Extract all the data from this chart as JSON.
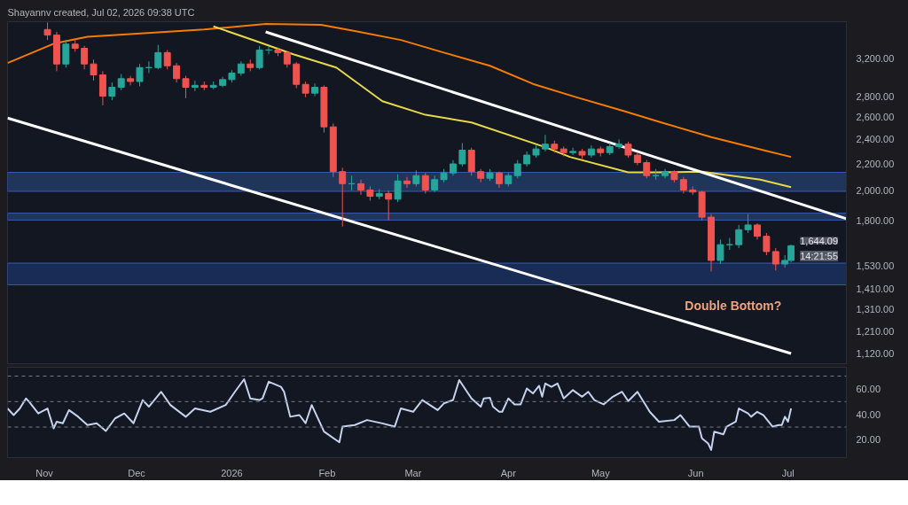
{
  "chart_data": [
    {
      "type": "candlestick",
      "title": "Shayannv created, Jul 02, 2026 09:38 UTC",
      "log": true,
      "x": [
        "2025-11-02",
        "2025-11-05",
        "2025-11-08",
        "2025-11-11",
        "2025-11-14",
        "2025-11-17",
        "2025-11-20",
        "2025-11-23",
        "2025-11-26",
        "2025-11-29",
        "2025-12-02",
        "2025-12-05",
        "2025-12-08",
        "2025-12-11",
        "2025-12-14",
        "2025-12-17",
        "2025-12-20",
        "2025-12-23",
        "2025-12-26",
        "2025-12-29",
        "2026-01-01",
        "2026-01-04",
        "2026-01-07",
        "2026-01-10",
        "2026-01-13",
        "2026-01-16",
        "2026-01-19",
        "2026-01-22",
        "2026-01-25",
        "2026-01-28",
        "2026-01-31",
        "2026-02-03",
        "2026-02-06",
        "2026-02-09",
        "2026-02-12",
        "2026-02-15",
        "2026-02-18",
        "2026-02-21",
        "2026-02-24",
        "2026-02-27",
        "2026-03-02",
        "2026-03-05",
        "2026-03-08",
        "2026-03-11",
        "2026-03-14",
        "2026-03-17",
        "2026-03-20",
        "2026-03-23",
        "2026-03-26",
        "2026-03-29",
        "2026-04-01",
        "2026-04-04",
        "2026-04-07",
        "2026-04-10",
        "2026-04-13",
        "2026-04-16",
        "2026-04-19",
        "2026-04-22",
        "2026-04-25",
        "2026-04-28",
        "2026-05-01",
        "2026-05-04",
        "2026-05-07",
        "2026-05-10",
        "2026-05-13",
        "2026-05-16",
        "2026-05-19",
        "2026-05-22",
        "2026-05-25",
        "2026-05-28",
        "2026-05-31",
        "2026-06-03",
        "2026-06-06",
        "2026-06-09",
        "2026-06-12",
        "2026-06-15",
        "2026-06-18",
        "2026-06-21",
        "2026-06-24",
        "2026-06-27",
        "2026-06-30",
        "2026-07-02"
      ],
      "ohlc": [
        [
          3550,
          3640,
          3420,
          3480
        ],
        [
          3480,
          3520,
          3060,
          3140
        ],
        [
          3140,
          3420,
          3100,
          3370
        ],
        [
          3370,
          3440,
          3280,
          3320
        ],
        [
          3320,
          3350,
          3080,
          3140
        ],
        [
          3140,
          3190,
          2960,
          3020
        ],
        [
          3020,
          3060,
          2710,
          2800
        ],
        [
          2800,
          2940,
          2760,
          2890
        ],
        [
          2890,
          3030,
          2860,
          2980
        ],
        [
          2980,
          3010,
          2910,
          2950
        ],
        [
          2950,
          3140,
          2900,
          3100
        ],
        [
          3100,
          3170,
          3040,
          3100
        ],
        [
          3100,
          3360,
          3080,
          3270
        ],
        [
          3270,
          3300,
          3080,
          3120
        ],
        [
          3120,
          3150,
          2940,
          2980
        ],
        [
          2980,
          3010,
          2780,
          2890
        ],
        [
          2890,
          2960,
          2850,
          2910
        ],
        [
          2910,
          2950,
          2860,
          2890
        ],
        [
          2890,
          2950,
          2870,
          2910
        ],
        [
          2910,
          3000,
          2890,
          2970
        ],
        [
          2970,
          3070,
          2940,
          3040
        ],
        [
          3040,
          3170,
          3010,
          3140
        ],
        [
          3140,
          3190,
          3060,
          3100
        ],
        [
          3100,
          3350,
          3080,
          3300
        ],
        [
          3300,
          3340,
          3250,
          3300
        ],
        [
          3300,
          3330,
          3230,
          3270
        ],
        [
          3270,
          3290,
          3100,
          3140
        ],
        [
          3140,
          3160,
          2880,
          2920
        ],
        [
          2920,
          2950,
          2790,
          2830
        ],
        [
          2830,
          2930,
          2800,
          2890
        ],
        [
          2890,
          2910,
          2460,
          2510
        ],
        [
          2510,
          2540,
          2100,
          2140
        ],
        [
          2140,
          2170,
          1760,
          2050
        ],
        [
          2050,
          2110,
          2000,
          2050
        ],
        [
          2050,
          2080,
          1970,
          2005
        ],
        [
          2005,
          2030,
          1930,
          1960
        ],
        [
          1960,
          2010,
          1940,
          1980
        ],
        [
          1980,
          2000,
          1800,
          1940
        ],
        [
          1940,
          2120,
          1920,
          2070
        ],
        [
          2070,
          2100,
          2020,
          2050
        ],
        [
          2050,
          2150,
          2030,
          2110
        ],
        [
          2110,
          2130,
          1980,
          2005
        ],
        [
          2005,
          2110,
          1990,
          2080
        ],
        [
          2080,
          2160,
          2060,
          2130
        ],
        [
          2130,
          2230,
          2110,
          2200
        ],
        [
          2200,
          2370,
          2180,
          2310
        ],
        [
          2310,
          2330,
          2110,
          2140
        ],
        [
          2140,
          2160,
          2060,
          2090
        ],
        [
          2090,
          2160,
          2070,
          2130
        ],
        [
          2130,
          2140,
          2020,
          2050
        ],
        [
          2050,
          2130,
          2030,
          2110
        ],
        [
          2110,
          2230,
          2090,
          2200
        ],
        [
          2200,
          2300,
          2180,
          2270
        ],
        [
          2270,
          2350,
          2250,
          2320
        ],
        [
          2320,
          2440,
          2300,
          2360
        ],
        [
          2360,
          2390,
          2290,
          2320
        ],
        [
          2320,
          2340,
          2260,
          2290
        ],
        [
          2290,
          2330,
          2270,
          2300
        ],
        [
          2300,
          2320,
          2240,
          2270
        ],
        [
          2270,
          2350,
          2250,
          2320
        ],
        [
          2320,
          2340,
          2260,
          2290
        ],
        [
          2290,
          2370,
          2270,
          2340
        ],
        [
          2340,
          2400,
          2320,
          2360
        ],
        [
          2360,
          2380,
          2250,
          2270
        ],
        [
          2270,
          2290,
          2190,
          2210
        ],
        [
          2210,
          2230,
          2090,
          2110
        ],
        [
          2110,
          2160,
          2080,
          2110
        ],
        [
          2110,
          2160,
          2090,
          2140
        ],
        [
          2140,
          2150,
          2060,
          2080
        ],
        [
          2080,
          2100,
          1980,
          2005
        ],
        [
          2005,
          2030,
          1970,
          1990
        ],
        [
          1990,
          2000,
          1800,
          1820
        ],
        [
          1820,
          1840,
          1500,
          1560
        ],
        [
          1560,
          1680,
          1540,
          1650
        ],
        [
          1650,
          1690,
          1620,
          1650
        ],
        [
          1650,
          1770,
          1630,
          1740
        ],
        [
          1740,
          1840,
          1720,
          1770
        ],
        [
          1770,
          1780,
          1680,
          1700
        ],
        [
          1700,
          1720,
          1590,
          1610
        ],
        [
          1610,
          1630,
          1505,
          1540
        ],
        [
          1540,
          1590,
          1520,
          1560
        ],
        [
          1560,
          1650,
          1550,
          1644
        ]
      ],
      "colors": [
        "#ef5350",
        "#ef5350",
        "#26a69a",
        "#ef5350",
        "#ef5350",
        "#ef5350",
        "#ef5350",
        "#26a69a",
        "#26a69a",
        "#ef5350",
        "#26a69a",
        "#26a69a",
        "#26a69a",
        "#ef5350",
        "#ef5350",
        "#ef5350",
        "#26a69a",
        "#ef5350",
        "#26a69a",
        "#26a69a",
        "#26a69a",
        "#26a69a",
        "#ef5350",
        "#26a69a",
        "#26a69a",
        "#ef5350",
        "#ef5350",
        "#ef5350",
        "#ef5350",
        "#26a69a",
        "#ef5350",
        "#ef5350",
        "#ef5350",
        "#26a69a",
        "#ef5350",
        "#ef5350",
        "#26a69a",
        "#ef5350",
        "#26a69a",
        "#ef5350",
        "#26a69a",
        "#ef5350",
        "#26a69a",
        "#26a69a",
        "#26a69a",
        "#26a69a",
        "#ef5350",
        "#ef5350",
        "#26a69a",
        "#ef5350",
        "#26a69a",
        "#26a69a",
        "#26a69a",
        "#26a69a",
        "#26a69a",
        "#ef5350",
        "#ef5350",
        "#26a69a",
        "#ef5350",
        "#26a69a",
        "#ef5350",
        "#26a69a",
        "#26a69a",
        "#ef5350",
        "#ef5350",
        "#ef5350",
        "#26a69a",
        "#26a69a",
        "#ef5350",
        "#ef5350",
        "#ef5350",
        "#ef5350",
        "#ef5350",
        "#26a69a",
        "#26a69a",
        "#26a69a",
        "#26a69a",
        "#ef5350",
        "#ef5350",
        "#ef5350",
        "#26a69a",
        "#26a69a"
      ],
      "series": [
        {
          "type": "line",
          "color": "#f57c00",
          "x": [
            "2025-10-20",
            "2025-11-04",
            "2025-11-15",
            "2025-11-30",
            "2025-12-23",
            "2026-01-12",
            "2026-01-30",
            "2026-02-10",
            "2026-02-25",
            "2026-03-11",
            "2026-03-26",
            "2026-04-09",
            "2026-04-23",
            "2026-05-08",
            "2026-05-22",
            "2026-06-06",
            "2026-06-23",
            "2026-07-02"
          ],
          "values": [
            3150,
            3375,
            3460,
            3495,
            3550,
            3620,
            3610,
            3530,
            3420,
            3270,
            3120,
            2925,
            2790,
            2660,
            2540,
            2420,
            2310,
            2255
          ]
        },
        {
          "type": "line",
          "color": "#e6d84a",
          "x": [
            "2025-12-26",
            "2026-01-09",
            "2026-01-21",
            "2026-02-04",
            "2026-02-19",
            "2026-03-05",
            "2026-03-20",
            "2026-04-13",
            "2026-04-21",
            "2026-05-10",
            "2026-05-19",
            "2026-06-03",
            "2026-06-22",
            "2026-07-02"
          ],
          "values": [
            3590,
            3405,
            3250,
            3100,
            2750,
            2620,
            2550,
            2335,
            2255,
            2135,
            2135,
            2140,
            2080,
            2025
          ]
        },
        {
          "type": "line",
          "color": "#ffffff",
          "x": [
            "2026-01-12",
            "2026-07-20"
          ],
          "values": [
            3520,
            1810
          ]
        },
        {
          "type": "line",
          "color": "#ffffff",
          "x": [
            "2025-10-20",
            "2026-07-02"
          ],
          "values": [
            2590,
            1120
          ]
        }
      ],
      "bands": [
        {
          "axis": "y",
          "from": 1430,
          "to": 1545,
          "color": "#1e3a7a"
        },
        {
          "axis": "y",
          "from": 1801,
          "to": 1846,
          "color": "#2a4a80"
        },
        {
          "axis": "y",
          "from": 1995,
          "to": 2135,
          "color": "#2a4a80"
        }
      ],
      "annotations": [
        "Double Bottom?",
        "1,644.09",
        "14:21:55"
      ],
      "xlim": [
        "2025-10-20",
        "2026-07-20"
      ],
      "ylim": [
        1080,
        3650
      ],
      "yticks": [
        {
          "value": 3200,
          "label": "3,200.00"
        },
        {
          "value": 2800,
          "label": "2,800.00"
        },
        {
          "value": 2600,
          "label": "2,600.00"
        },
        {
          "value": 2400,
          "label": "2,400.00"
        },
        {
          "value": 2200,
          "label": "2,200.00"
        },
        {
          "value": 2000,
          "label": "2,000.00"
        },
        {
          "value": 1800,
          "label": "1,800.00"
        },
        {
          "value": 1530,
          "label": "1,530.00"
        },
        {
          "value": 1410,
          "label": "1,410.00"
        },
        {
          "value": 1310,
          "label": "1,310.00"
        },
        {
          "value": 1210,
          "label": "1,210.00"
        },
        {
          "value": 1120,
          "label": "1,120.00"
        }
      ],
      "tick_labels": "y"
    },
    {
      "type": "line",
      "series": [
        {
          "color": "#c5d3ee",
          "x": [
            "2025-10-20",
            "2025-10-22",
            "2025-10-24",
            "2025-10-26",
            "2025-10-27",
            "2025-10-30",
            "2025-11-02",
            "2025-11-04",
            "2025-11-05",
            "2025-11-07",
            "2025-11-09",
            "2025-11-12",
            "2025-11-15",
            "2025-11-18",
            "2025-11-21",
            "2025-11-24",
            "2025-11-27",
            "2025-11-30",
            "2025-12-03",
            "2025-12-05",
            "2025-12-09",
            "2025-12-12",
            "2025-12-17",
            "2025-12-20",
            "2025-12-25",
            "2025-12-30",
            "2026-01-02",
            "2026-01-05",
            "2026-01-07",
            "2026-01-10",
            "2026-01-11",
            "2026-01-13",
            "2026-01-17",
            "2026-01-18",
            "2026-01-20",
            "2026-01-23",
            "2026-01-25",
            "2026-01-27",
            "2026-01-31",
            "2026-02-05",
            "2026-02-06",
            "2026-02-10",
            "2026-02-14",
            "2026-02-19",
            "2026-02-23",
            "2026-02-25",
            "2026-03-01",
            "2026-03-04",
            "2026-03-09",
            "2026-03-11",
            "2026-03-14",
            "2026-03-16",
            "2026-03-20",
            "2026-03-23",
            "2026-03-24",
            "2026-03-26",
            "2026-03-27",
            "2026-03-29",
            "2026-03-30",
            "2026-04-01",
            "2026-04-03",
            "2026-04-05",
            "2026-04-07",
            "2026-04-09",
            "2026-04-11",
            "2026-04-12",
            "2026-04-13",
            "2026-04-15",
            "2026-04-17",
            "2026-04-19",
            "2026-04-22",
            "2026-04-25",
            "2026-04-27",
            "2026-04-29",
            "2026-05-02",
            "2026-05-05",
            "2026-05-08",
            "2026-05-10",
            "2026-05-13",
            "2026-05-16",
            "2026-05-17",
            "2026-05-20",
            "2026-05-25",
            "2026-05-27",
            "2026-05-30",
            "2026-06-02",
            "2026-06-03",
            "2026-06-05",
            "2026-06-06",
            "2026-06-07",
            "2026-06-10",
            "2026-06-11",
            "2026-06-14",
            "2026-06-15",
            "2026-06-18",
            "2026-06-19",
            "2026-06-21",
            "2026-06-23",
            "2026-06-26",
            "2026-06-28",
            "2026-06-29",
            "2026-06-30",
            "2026-07-01",
            "2026-07-02"
          ],
          "values": [
            44.6,
            39.4,
            44.6,
            52.5,
            49.9,
            40.7,
            44.6,
            29,
            34.2,
            33,
            43.3,
            38.1,
            31.6,
            32.9,
            26.9,
            36.8,
            40.7,
            33,
            51.2,
            46,
            57.7,
            47.3,
            38.1,
            44.6,
            42,
            47.3,
            57.7,
            67.6,
            52.5,
            51.2,
            52.5,
            65.6,
            61.6,
            57.7,
            38.1,
            39.4,
            33,
            47.3,
            26.4,
            18,
            30.3,
            31.6,
            35.5,
            32.9,
            30.3,
            44.6,
            42,
            51.2,
            43.3,
            48.6,
            51.2,
            66.9,
            52.5,
            46,
            52.5,
            53,
            46,
            42,
            42,
            52.5,
            47.8,
            47.8,
            60.3,
            56.4,
            62.4,
            53.8,
            64.2,
            61.6,
            64.2,
            52.5,
            59,
            53.8,
            57.7,
            51.2,
            47.8,
            53.8,
            57.7,
            50.4,
            57.7,
            46,
            42,
            34.2,
            35.5,
            39.4,
            30.3,
            30.3,
            21.1,
            17.2,
            12,
            26.4,
            24.3,
            30.3,
            34.2,
            44.6,
            40.7,
            38.1,
            42,
            39.4,
            30.3,
            31.6,
            31.6,
            38.1,
            34.2,
            44.6
          ]
        }
      ],
      "ref_lines": [
        {
          "axis": "y",
          "value": 70,
          "color": "#787b86",
          "line_style": "dashed"
        },
        {
          "axis": "y",
          "value": 50,
          "color": "#787b86",
          "line_style": "dashed"
        },
        {
          "axis": "y",
          "value": 30,
          "color": "#787b86",
          "line_style": "dashed"
        }
      ],
      "xlim": [
        "2025-10-20",
        "2026-07-20"
      ],
      "ylim": [
        6,
        77
      ],
      "xticks": [
        {
          "value": "2025-11-01",
          "label": "Nov"
        },
        {
          "value": "2025-12-01",
          "label": "Dec"
        },
        {
          "value": "2026-01-01",
          "label": "2026"
        },
        {
          "value": "2026-02-01",
          "label": "Feb"
        },
        {
          "value": "2026-03-01",
          "label": "Mar"
        },
        {
          "value": "2026-04-01",
          "label": "Apr"
        },
        {
          "value": "2026-05-01",
          "label": "May"
        },
        {
          "value": "2026-06-01",
          "label": "Jun"
        },
        {
          "value": "2026-07-01",
          "label": "Jul"
        }
      ],
      "yticks": [
        {
          "value": 60,
          "label": "60.00"
        },
        {
          "value": 40,
          "label": "40.00"
        },
        {
          "value": 20,
          "label": "20.00"
        }
      ]
    }
  ]
}
